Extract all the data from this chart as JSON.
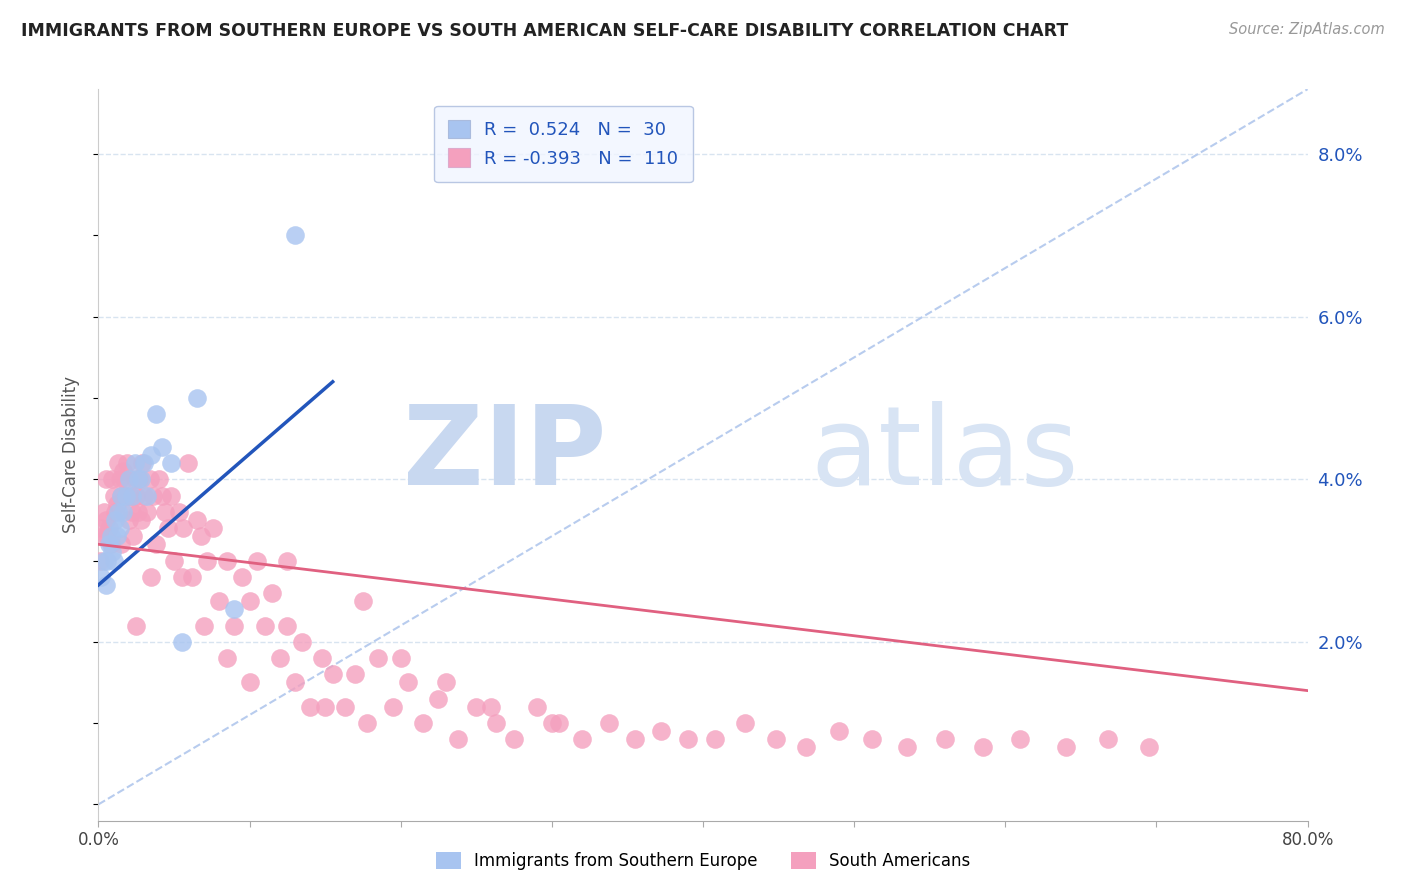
{
  "title": "IMMIGRANTS FROM SOUTHERN EUROPE VS SOUTH AMERICAN SELF-CARE DISABILITY CORRELATION CHART",
  "source": "Source: ZipAtlas.com",
  "ylabel": "Self-Care Disability",
  "xlim": [
    0.0,
    0.8
  ],
  "ylim": [
    -0.002,
    0.088
  ],
  "xticks": [
    0.0,
    0.1,
    0.2,
    0.3,
    0.4,
    0.5,
    0.6,
    0.7,
    0.8
  ],
  "yticks_right": [
    0.02,
    0.04,
    0.06,
    0.08
  ],
  "ytick_labels_right": [
    "2.0%",
    "4.0%",
    "6.0%",
    "8.0%"
  ],
  "blue_R": 0.524,
  "blue_N": 30,
  "pink_R": -0.393,
  "pink_N": 110,
  "blue_color": "#a8c4f0",
  "pink_color": "#f4a0be",
  "blue_line_color": "#2255bb",
  "pink_line_color": "#e06080",
  "ref_line_color": "#b8ccee",
  "grid_color": "#d8e4f0",
  "blue_scatter_x": [
    0.002,
    0.004,
    0.005,
    0.006,
    0.007,
    0.008,
    0.009,
    0.01,
    0.011,
    0.012,
    0.013,
    0.014,
    0.015,
    0.016,
    0.018,
    0.02,
    0.022,
    0.024,
    0.026,
    0.028,
    0.03,
    0.032,
    0.035,
    0.038,
    0.042,
    0.048,
    0.055,
    0.065,
    0.09,
    0.13
  ],
  "blue_scatter_y": [
    0.028,
    0.03,
    0.027,
    0.03,
    0.032,
    0.033,
    0.031,
    0.03,
    0.035,
    0.033,
    0.036,
    0.034,
    0.038,
    0.036,
    0.038,
    0.04,
    0.038,
    0.042,
    0.04,
    0.04,
    0.042,
    0.038,
    0.043,
    0.048,
    0.044,
    0.042,
    0.02,
    0.05,
    0.024,
    0.07
  ],
  "pink_scatter_x": [
    0.001,
    0.002,
    0.003,
    0.004,
    0.005,
    0.006,
    0.007,
    0.008,
    0.009,
    0.01,
    0.011,
    0.012,
    0.013,
    0.014,
    0.015,
    0.016,
    0.017,
    0.018,
    0.019,
    0.02,
    0.021,
    0.022,
    0.023,
    0.024,
    0.025,
    0.026,
    0.027,
    0.028,
    0.029,
    0.03,
    0.032,
    0.034,
    0.036,
    0.038,
    0.04,
    0.042,
    0.044,
    0.046,
    0.048,
    0.05,
    0.053,
    0.056,
    0.059,
    0.062,
    0.065,
    0.068,
    0.072,
    0.076,
    0.08,
    0.085,
    0.09,
    0.095,
    0.1,
    0.105,
    0.11,
    0.115,
    0.12,
    0.125,
    0.13,
    0.135,
    0.14,
    0.148,
    0.155,
    0.163,
    0.17,
    0.178,
    0.185,
    0.195,
    0.205,
    0.215,
    0.225,
    0.238,
    0.25,
    0.263,
    0.275,
    0.29,
    0.305,
    0.32,
    0.338,
    0.355,
    0.372,
    0.39,
    0.408,
    0.428,
    0.448,
    0.468,
    0.49,
    0.512,
    0.535,
    0.56,
    0.585,
    0.61,
    0.64,
    0.668,
    0.695,
    0.005,
    0.015,
    0.025,
    0.035,
    0.055,
    0.07,
    0.085,
    0.1,
    0.125,
    0.15,
    0.175,
    0.2,
    0.23,
    0.26,
    0.3
  ],
  "pink_scatter_y": [
    0.03,
    0.034,
    0.033,
    0.036,
    0.035,
    0.033,
    0.034,
    0.032,
    0.04,
    0.038,
    0.036,
    0.037,
    0.042,
    0.04,
    0.038,
    0.041,
    0.04,
    0.038,
    0.042,
    0.035,
    0.038,
    0.036,
    0.033,
    0.04,
    0.038,
    0.036,
    0.04,
    0.035,
    0.042,
    0.038,
    0.036,
    0.04,
    0.038,
    0.032,
    0.04,
    0.038,
    0.036,
    0.034,
    0.038,
    0.03,
    0.036,
    0.034,
    0.042,
    0.028,
    0.035,
    0.033,
    0.03,
    0.034,
    0.025,
    0.03,
    0.022,
    0.028,
    0.025,
    0.03,
    0.022,
    0.026,
    0.018,
    0.022,
    0.015,
    0.02,
    0.012,
    0.018,
    0.016,
    0.012,
    0.016,
    0.01,
    0.018,
    0.012,
    0.015,
    0.01,
    0.013,
    0.008,
    0.012,
    0.01,
    0.008,
    0.012,
    0.01,
    0.008,
    0.01,
    0.008,
    0.009,
    0.008,
    0.008,
    0.01,
    0.008,
    0.007,
    0.009,
    0.008,
    0.007,
    0.008,
    0.007,
    0.008,
    0.007,
    0.008,
    0.007,
    0.04,
    0.032,
    0.022,
    0.028,
    0.028,
    0.022,
    0.018,
    0.015,
    0.03,
    0.012,
    0.025,
    0.018,
    0.015,
    0.012,
    0.01
  ],
  "blue_trend_x": [
    0.0,
    0.155
  ],
  "blue_trend_y": [
    0.027,
    0.052
  ],
  "pink_trend_x": [
    0.0,
    0.8
  ],
  "pink_trend_y": [
    0.032,
    0.014
  ],
  "ref_line_x": [
    0.0,
    0.8
  ],
  "ref_line_y": [
    0.0,
    0.088
  ]
}
